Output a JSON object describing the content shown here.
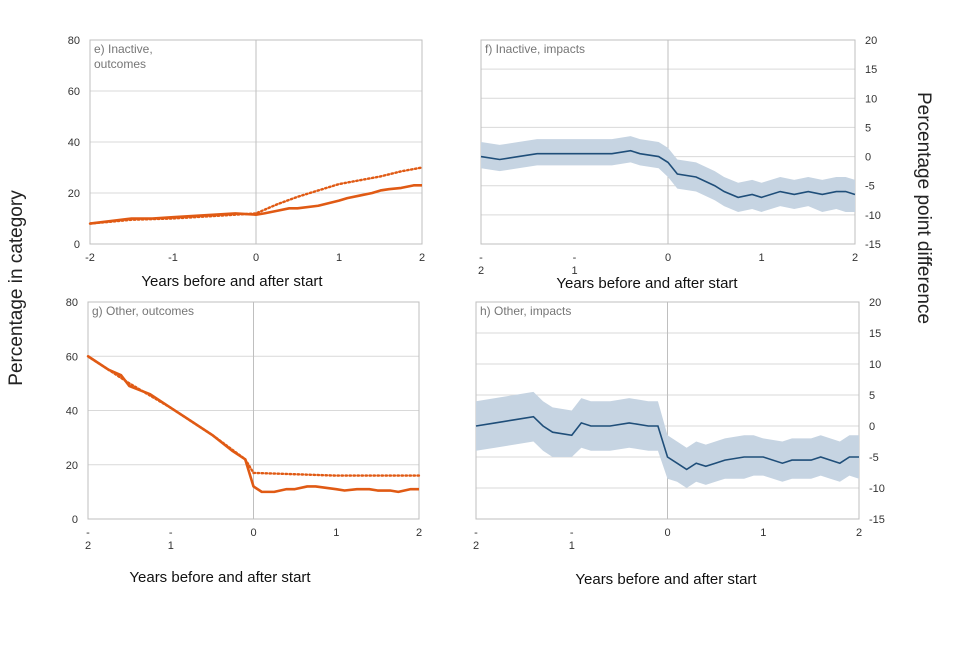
{
  "page": {
    "left_axis_title": "Percentage in category",
    "right_axis_title": "Percentage point difference"
  },
  "colors": {
    "outcome_line": "#e05a14",
    "impact_line": "#1f4e79",
    "impact_band": "#c6d4e2",
    "grid": "#d9d9d9",
    "frame": "#bfbfbf",
    "tick_text": "#333333",
    "panel_label": "#767676"
  },
  "chart_data": [
    {
      "id": "e",
      "type": "line",
      "title": "e) Inactive, outcomes",
      "title_lines": [
        "e) Inactive,",
        "outcomes"
      ],
      "xlabel": "Years before and after start",
      "xlim": [
        -2,
        2
      ],
      "ylim": [
        0,
        80
      ],
      "x_ticks": [
        -2,
        -1,
        0,
        1,
        2
      ],
      "x_tick_labels": [
        [
          "-2"
        ],
        [
          "-1"
        ],
        [
          "0"
        ],
        [
          "1"
        ],
        [
          "2"
        ]
      ],
      "y_ticks": [
        0,
        20,
        40,
        60,
        80
      ],
      "y_tick_labels": [
        "0",
        "20",
        "40",
        "60",
        "80"
      ],
      "grid": true,
      "series": [
        {
          "style": "solid",
          "x": [
            -2,
            -1.75,
            -1.5,
            -1.25,
            -1,
            -0.75,
            -0.5,
            -0.25,
            0,
            0.1,
            0.25,
            0.4,
            0.5,
            0.75,
            1,
            1.1,
            1.25,
            1.4,
            1.5,
            1.6,
            1.75,
            1.9,
            2
          ],
          "y": [
            8,
            9,
            10,
            10,
            10.5,
            11,
            11.5,
            12,
            11.5,
            12,
            13,
            14,
            14,
            15,
            17,
            18,
            19,
            20,
            21,
            21.5,
            22,
            23,
            23
          ]
        },
        {
          "style": "dotted",
          "x": [
            -2,
            -1.5,
            -1,
            -0.5,
            -0.25,
            0,
            0.25,
            0.5,
            0.75,
            1,
            1.25,
            1.5,
            1.75,
            2
          ],
          "y": [
            8,
            9.5,
            10,
            11,
            11.5,
            12,
            15.5,
            18.5,
            21,
            23.5,
            25,
            26.5,
            28.5,
            30
          ]
        }
      ]
    },
    {
      "id": "f",
      "type": "line",
      "title": "f) Inactive, impacts",
      "title_lines": [
        "f) Inactive, impacts"
      ],
      "xlabel": "Years before and after start",
      "xlim": [
        -2,
        2
      ],
      "ylim": [
        -15,
        20
      ],
      "x_ticks": [
        -2,
        -1,
        0,
        1,
        2
      ],
      "x_tick_labels": [
        [
          "-",
          "2"
        ],
        [
          "-",
          "1"
        ],
        [
          "0"
        ],
        [
          "1"
        ],
        [
          "2"
        ]
      ],
      "y_ticks": [
        -15,
        -10,
        -5,
        0,
        5,
        10,
        15,
        20
      ],
      "y_tick_labels": [
        "-15",
        "-10",
        "-5",
        "0",
        "5",
        "10",
        "15",
        "20"
      ],
      "grid": true,
      "series": [
        {
          "style": "band",
          "x": [
            -2,
            -1.8,
            -1.6,
            -1.4,
            -1.2,
            -1,
            -0.8,
            -0.6,
            -0.4,
            -0.3,
            -0.1,
            0,
            0.1,
            0.3,
            0.5,
            0.6,
            0.75,
            0.9,
            1,
            1.2,
            1.35,
            1.5,
            1.65,
            1.8,
            1.9,
            2
          ],
          "y": [
            0,
            -0.5,
            0,
            0.5,
            0.5,
            0.5,
            0.5,
            0.5,
            1,
            0.5,
            0,
            -1,
            -3,
            -3.5,
            -5,
            -6,
            -7,
            -6.5,
            -7,
            -6,
            -6.5,
            -6,
            -6.5,
            -6,
            -6,
            -6.5
          ],
          "low": [
            -2,
            -2.5,
            -2,
            -1.5,
            -1.5,
            -1.5,
            -1.5,
            -1.5,
            -1,
            -1.5,
            -2,
            -3.5,
            -5.5,
            -6,
            -7.5,
            -8.5,
            -9.5,
            -9,
            -9.5,
            -8.5,
            -9,
            -8.5,
            -9.5,
            -9,
            -9.5,
            -9.5
          ],
          "high": [
            2.5,
            2,
            2.5,
            3,
            3,
            3,
            3,
            3,
            3.5,
            3,
            2.5,
            1.5,
            -0.5,
            -1,
            -2.5,
            -3.5,
            -4.5,
            -4,
            -4.5,
            -3.5,
            -4,
            -3.5,
            -4,
            -3.5,
            -3.5,
            -4
          ]
        }
      ]
    },
    {
      "id": "g",
      "type": "line",
      "title": "g) Other, outcomes",
      "title_lines": [
        "g) Other, outcomes"
      ],
      "xlabel": "Years before and after start",
      "xlim": [
        -2,
        2
      ],
      "ylim": [
        0,
        80
      ],
      "x_ticks": [
        -2,
        -1,
        0,
        1,
        2
      ],
      "x_tick_labels": [
        [
          "-",
          "2"
        ],
        [
          "-",
          "1"
        ],
        [
          "0"
        ],
        [
          "1"
        ],
        [
          "2"
        ]
      ],
      "y_ticks": [
        0,
        20,
        40,
        60,
        80
      ],
      "y_tick_labels": [
        "0",
        "20",
        "40",
        "60",
        "80"
      ],
      "grid": true,
      "series": [
        {
          "style": "solid",
          "x": [
            -2,
            -1.75,
            -1.6,
            -1.5,
            -1.25,
            -1,
            -0.75,
            -0.5,
            -0.25,
            -0.1,
            0,
            0.1,
            0.25,
            0.4,
            0.5,
            0.65,
            0.75,
            1,
            1.1,
            1.25,
            1.4,
            1.5,
            1.65,
            1.75,
            1.9,
            2
          ],
          "y": [
            60,
            55,
            53,
            49,
            46,
            41,
            36,
            31,
            25,
            22,
            12,
            10,
            10,
            11,
            11,
            12,
            12,
            11,
            10.5,
            11,
            11,
            10.5,
            10.5,
            10,
            11,
            11
          ],
          "low": [],
          "high": []
        },
        {
          "style": "dotted",
          "x": [
            -2,
            -1.5,
            -1,
            -0.5,
            -0.1,
            0,
            0.5,
            1,
            1.5,
            2
          ],
          "y": [
            60,
            50,
            41,
            31,
            22,
            17,
            16.5,
            16,
            16,
            16
          ]
        }
      ]
    },
    {
      "id": "h",
      "type": "line",
      "title": "h) Other, impacts",
      "title_lines": [
        "h) Other, impacts"
      ],
      "xlabel": "Years before and after start",
      "xlim": [
        -2,
        2
      ],
      "ylim": [
        -15,
        20
      ],
      "x_ticks": [
        -2,
        -1,
        0,
        1,
        2
      ],
      "x_tick_labels": [
        [
          "-",
          "2"
        ],
        [
          "-",
          "1"
        ],
        [
          "0"
        ],
        [
          "1"
        ],
        [
          "2"
        ]
      ],
      "y_ticks": [
        -15,
        -10,
        -5,
        0,
        5,
        10,
        15,
        20
      ],
      "y_tick_labels": [
        "-15",
        "-10",
        "-5",
        "0",
        "5",
        "10",
        "15",
        "20"
      ],
      "grid": true,
      "series": [
        {
          "style": "band",
          "x": [
            -2,
            -1.8,
            -1.6,
            -1.4,
            -1.3,
            -1.2,
            -1,
            -0.9,
            -0.8,
            -0.6,
            -0.4,
            -0.2,
            -0.1,
            0,
            0.1,
            0.2,
            0.3,
            0.4,
            0.5,
            0.6,
            0.8,
            0.9,
            1,
            1.2,
            1.3,
            1.5,
            1.6,
            1.7,
            1.8,
            1.9,
            2
          ],
          "y": [
            0,
            0.5,
            1,
            1.5,
            0,
            -1,
            -1.5,
            0.5,
            0,
            0,
            0.5,
            0,
            0,
            -5,
            -6,
            -7,
            -6,
            -6.5,
            -6,
            -5.5,
            -5,
            -5,
            -5,
            -6,
            -5.5,
            -5.5,
            -5,
            -5.5,
            -6,
            -5,
            -5
          ],
          "low": [
            -4,
            -3.5,
            -3,
            -2.5,
            -4,
            -5,
            -5,
            -3.5,
            -4,
            -4,
            -3.5,
            -4,
            -4,
            -8.5,
            -9,
            -10,
            -9,
            -9.5,
            -9,
            -8.5,
            -8.5,
            -8,
            -8,
            -9,
            -8.5,
            -8.5,
            -8,
            -8.5,
            -9,
            -8,
            -8.5
          ],
          "high": [
            4,
            4.5,
            5,
            5.5,
            4,
            3,
            2.5,
            4.5,
            4,
            4,
            4.5,
            4,
            4,
            -1.5,
            -2.5,
            -3.5,
            -2.5,
            -3,
            -2.5,
            -2,
            -1.5,
            -1.5,
            -2,
            -2.5,
            -2,
            -2,
            -1.5,
            -2,
            -2.5,
            -1.5,
            -1.5
          ]
        }
      ]
    }
  ]
}
